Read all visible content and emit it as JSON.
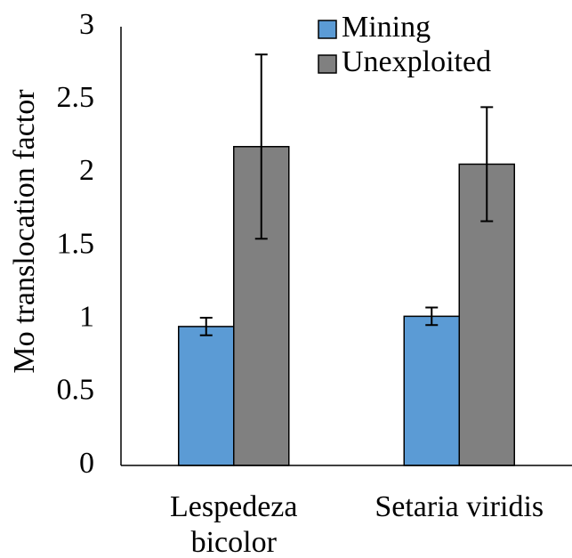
{
  "chart_data": {
    "type": "bar",
    "categories": [
      "Lespedeza bicolor",
      "Setaria viridis"
    ],
    "series": [
      {
        "name": "Mining",
        "color": "#5b9bd5",
        "values": [
          0.95,
          1.02
        ],
        "errors": [
          0.06,
          0.06
        ]
      },
      {
        "name": "Unexploited",
        "color": "#808080",
        "values": [
          2.18,
          2.06
        ],
        "errors": [
          0.63,
          0.39
        ]
      }
    ],
    "y_label": "Mo translocation factor",
    "ylim": [
      0,
      3
    ],
    "yticks": [
      0,
      0.5,
      1,
      1.5,
      2,
      2.5,
      3
    ],
    "grid": false,
    "legend": "top-right"
  }
}
